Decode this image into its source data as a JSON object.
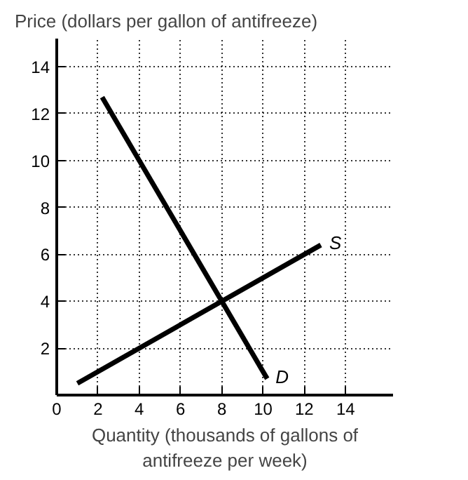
{
  "chart_data": {
    "type": "line",
    "ylabel": "Price (dollars per gallon of antifreeze)",
    "xlabel": "Quantity (thousands of gallons of antifreeze per week)",
    "series": [
      {
        "name": "S",
        "color": "#000000",
        "x": [
          1,
          12.8
        ],
        "values": [
          0.5,
          6.4
        ]
      },
      {
        "name": "D",
        "color": "#000000",
        "x": [
          2.2,
          10.2
        ],
        "values": [
          12.7,
          0.7
        ]
      }
    ],
    "xlim": [
      0,
      16.3
    ],
    "ylim": [
      0,
      15.2
    ],
    "xticks": [
      0,
      2,
      4,
      6,
      8,
      10,
      12,
      14
    ],
    "yticks": [
      2,
      4,
      6,
      8,
      10,
      12,
      14
    ],
    "grid": true,
    "line_style": "solid",
    "marker": "none"
  }
}
